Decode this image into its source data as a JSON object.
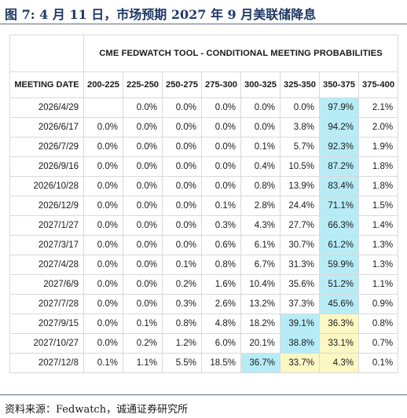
{
  "figure": {
    "title": "图 7:   4 月 11 日，市场预期 2027 年 9 月美联储降息",
    "source": "资料来源：Fedwatch，诚通证券研究所"
  },
  "table": {
    "super_header": "CME FEDWATCH TOOL - CONDITIONAL MEETING PROBABILITIES",
    "date_header": "MEETING DATE",
    "columns": [
      "200-225",
      "225-250",
      "250-275",
      "275-300",
      "300-325",
      "325-350",
      "350-375",
      "375-400"
    ],
    "rows": [
      {
        "date": "2026/4/29",
        "values": [
          "",
          "0.0%",
          "0.0%",
          "0.0%",
          "0.0%",
          "0.0%",
          "97.9%",
          "2.1%"
        ],
        "hl": [
          "",
          "",
          "",
          "",
          "",
          "",
          "b",
          ""
        ]
      },
      {
        "date": "2026/6/17",
        "values": [
          "0.0%",
          "0.0%",
          "0.0%",
          "0.0%",
          "0.0%",
          "3.8%",
          "94.2%",
          "2.0%"
        ],
        "hl": [
          "",
          "",
          "",
          "",
          "",
          "",
          "b",
          ""
        ]
      },
      {
        "date": "2026/7/29",
        "values": [
          "0.0%",
          "0.0%",
          "0.0%",
          "0.0%",
          "0.1%",
          "5.7%",
          "92.3%",
          "1.9%"
        ],
        "hl": [
          "",
          "",
          "",
          "",
          "",
          "",
          "b",
          ""
        ]
      },
      {
        "date": "2026/9/16",
        "values": [
          "0.0%",
          "0.0%",
          "0.0%",
          "0.0%",
          "0.4%",
          "10.5%",
          "87.2%",
          "1.8%"
        ],
        "hl": [
          "",
          "",
          "",
          "",
          "",
          "",
          "b",
          ""
        ]
      },
      {
        "date": "2026/10/28",
        "values": [
          "0.0%",
          "0.0%",
          "0.0%",
          "0.0%",
          "0.8%",
          "13.9%",
          "83.4%",
          "1.8%"
        ],
        "hl": [
          "",
          "",
          "",
          "",
          "",
          "",
          "b",
          ""
        ]
      },
      {
        "date": "2026/12/9",
        "values": [
          "0.0%",
          "0.0%",
          "0.0%",
          "0.1%",
          "2.8%",
          "24.4%",
          "71.1%",
          "1.5%"
        ],
        "hl": [
          "",
          "",
          "",
          "",
          "",
          "",
          "b",
          ""
        ]
      },
      {
        "date": "2027/1/27",
        "values": [
          "0.0%",
          "0.0%",
          "0.0%",
          "0.3%",
          "4.3%",
          "27.7%",
          "66.3%",
          "1.4%"
        ],
        "hl": [
          "",
          "",
          "",
          "",
          "",
          "",
          "b",
          ""
        ]
      },
      {
        "date": "2027/3/17",
        "values": [
          "0.0%",
          "0.0%",
          "0.0%",
          "0.6%",
          "6.1%",
          "30.7%",
          "61.2%",
          "1.3%"
        ],
        "hl": [
          "",
          "",
          "",
          "",
          "",
          "",
          "b",
          ""
        ]
      },
      {
        "date": "2027/4/28",
        "values": [
          "0.0%",
          "0.0%",
          "0.1%",
          "0.8%",
          "6.7%",
          "31.3%",
          "59.9%",
          "1.3%"
        ],
        "hl": [
          "",
          "",
          "",
          "",
          "",
          "",
          "b",
          ""
        ]
      },
      {
        "date": "2027/6/9",
        "values": [
          "0.0%",
          "0.0%",
          "0.2%",
          "1.6%",
          "10.4%",
          "35.6%",
          "51.2%",
          "1.1%"
        ],
        "hl": [
          "",
          "",
          "",
          "",
          "",
          "",
          "b",
          ""
        ]
      },
      {
        "date": "2027/7/28",
        "values": [
          "0.0%",
          "0.0%",
          "0.3%",
          "2.6%",
          "13.2%",
          "37.3%",
          "45.6%",
          "0.9%"
        ],
        "hl": [
          "",
          "",
          "",
          "",
          "",
          "",
          "b",
          ""
        ]
      },
      {
        "date": "2027/9/15",
        "values": [
          "0.0%",
          "0.1%",
          "0.8%",
          "4.8%",
          "18.2%",
          "39.1%",
          "36.3%",
          "0.8%"
        ],
        "hl": [
          "",
          "",
          "",
          "",
          "",
          "b",
          "y",
          ""
        ]
      },
      {
        "date": "2027/10/27",
        "values": [
          "0.0%",
          "0.2%",
          "1.2%",
          "6.0%",
          "20.1%",
          "38.8%",
          "33.1%",
          "0.7%"
        ],
        "hl": [
          "",
          "",
          "",
          "",
          "",
          "b",
          "y",
          ""
        ]
      },
      {
        "date": "2027/12/8",
        "values": [
          "0.1%",
          "1.1%",
          "5.5%",
          "18.5%",
          "36.7%",
          "33.7%",
          "4.3%",
          "0.1%"
        ],
        "hl": [
          "",
          "",
          "",
          "",
          "b",
          "y",
          "y",
          ""
        ]
      }
    ]
  },
  "colors": {
    "highlight_blue": "#b7ecf6",
    "highlight_yellow": "#fdf7c4",
    "title_color": "#1f3864"
  }
}
